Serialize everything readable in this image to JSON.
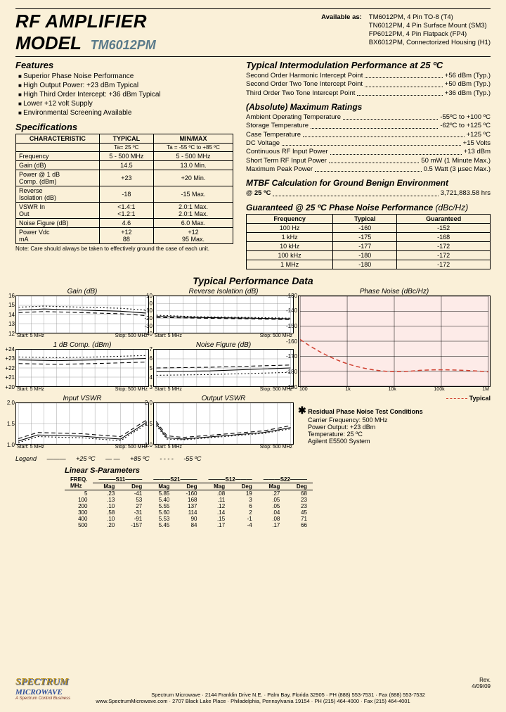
{
  "header": {
    "line1": "RF AMPLIFIER",
    "line2": "MODEL",
    "model": "TM6012PM",
    "available_label": "Available as:",
    "available": [
      "TM6012PM, 4 Pin TO-8 (T4)",
      "TN6012PM, 4 Pin Surface Mount (SM3)",
      "FP6012PM, 4 Pin Flatpack (FP4)",
      "BX6012PM, Connectorized Housing (H1)"
    ]
  },
  "features": {
    "title": "Features",
    "items": [
      "Superior Phase Noise Performance",
      "High Output Power: +23 dBm Typical",
      "High Third Order Intercept: +36 dBm Typical",
      "Lower +12 volt Supply",
      "Environmental Screening Available"
    ]
  },
  "spec": {
    "title": "Specifications",
    "h_char": "CHARACTERISTIC",
    "h_typ": "TYPICAL",
    "h_mm": "MIN/MAX",
    "sub_typ": "Ta= 25 ºC",
    "sub_mm": "Ta = -55 ºC to +85 ºC",
    "rows": [
      {
        "c": "Frequency",
        "t": "5 - 500 MHz",
        "m": "5 - 500 MHz"
      },
      {
        "c": "Gain (dB)",
        "t": "14.5",
        "m": "13.0  Min."
      },
      {
        "c": "Power @ 1 dB\n   Comp. (dBm)",
        "t": "+23",
        "m": "+20  Min."
      },
      {
        "c": "Reverse\n   Isolation (dB)",
        "t": "-18",
        "m": "-15  Max."
      },
      {
        "c": "VSWR      In\n             Out",
        "t": "<1.4:1\n<1.2:1",
        "m": "2.0:1  Max.\n2.0:1  Max."
      },
      {
        "c": "Noise Figure (dB)",
        "t": "4.6",
        "m": "6.0  Max."
      },
      {
        "c": "Power    Vdc\n            mA",
        "t": "+12\n88",
        "m": "+12\n95  Max."
      }
    ],
    "note": "Note: Care should always be taken to effectively ground the case of each unit."
  },
  "intermod": {
    "title": "Typical Intermodulation Performance at 25 ºC",
    "lines": [
      {
        "l": "Second Order Harmonic Intercept Point",
        "r": "+56 dBm (Typ.)"
      },
      {
        "l": "Second Order Two Tone Intercept Point",
        "r": "+50 dBm (Typ.)"
      },
      {
        "l": "Third Order Two Tone Intercept Point",
        "r": "+36 dBm (Typ.)"
      }
    ]
  },
  "maxr": {
    "title": "(Absolute) Maximum Ratings",
    "lines": [
      {
        "l": "Ambient Operating Temperature",
        "r": "-55ºC to +100 ºC"
      },
      {
        "l": "Storage Temperature",
        "r": "-62ºC to +125 ºC"
      },
      {
        "l": "Case Temperature",
        "r": "+125 ºC"
      },
      {
        "l": "DC Voltage",
        "r": "+15 Volts"
      },
      {
        "l": "Continuous RF Input Power",
        "r": "+13 dBm"
      },
      {
        "l": "Short Term RF Input Power",
        "r": "50 mW (1 Minute Max.)"
      },
      {
        "l": "Maximum Peak Power",
        "r": "0.5 Watt (3 µsec Max.)"
      }
    ]
  },
  "mtbf": {
    "title": "MTBF Calculation for Ground Benign Environment",
    "line": {
      "l": "@ 25 ºC",
      "r": "3,721,883.58 hrs"
    }
  },
  "pn_table": {
    "title": "Guaranteed @ 25 ºC Phase Noise Performance ",
    "unit": "(dBc/Hz)",
    "h1": "Frequency",
    "h2": "Typical",
    "h3": "Guaranteed",
    "rows": [
      {
        "f": "100 Hz",
        "t": "-160",
        "g": "-152"
      },
      {
        "f": "1 kHz",
        "t": "-175",
        "g": "-168"
      },
      {
        "f": "10 kHz",
        "t": "-177",
        "g": "-172"
      },
      {
        "f": "100 kHz",
        "t": "-180",
        "g": "-172"
      },
      {
        "f": "1 MHz",
        "t": "-180",
        "g": "-172"
      }
    ]
  },
  "perf": {
    "title": "Typical Performance Data",
    "charts": {
      "gain": {
        "title": "Gain (dB)",
        "ymin": 12,
        "ymax": 16,
        "ystep": 1
      },
      "riso": {
        "title": "Reverse Isolation (dB)",
        "ymin": -40,
        "ymax": 10,
        "ystep": 10
      },
      "pn": {
        "title": "Phase Noise (dBc/Hz)",
        "ymin": -190,
        "ymax": -130,
        "ystep": 10
      },
      "comp": {
        "title": "1 dB Comp. (dBm)",
        "ymin": 20,
        "ymax": 24,
        "ystep": 1
      },
      "nf": {
        "title": "Noise Figure (dB)",
        "ymin": 3,
        "ymax": 7,
        "ystep": 1
      },
      "ivswr": {
        "title": "Input VSWR",
        "ymin": 1.0,
        "ymax": 2.0,
        "ystep": 0.5
      },
      "ovswr": {
        "title": "Output VSWR",
        "ymin": 1.0,
        "ymax": 2.0,
        "ystep": 0.5
      }
    },
    "xstart": "Start: 5 MHz",
    "xstop": "Stop: 500 MHz",
    "legend_label": "Legend",
    "leg25": "+25 ºC",
    "leg85": "+85 ºC",
    "legm55": "-55 ºC",
    "pn_legend": "Typical",
    "cond_title": "Residual Phase Noise Test Conditions",
    "cond": [
      "Carrier Frequency: 500 MHz",
      "Power Output: +23 dBm",
      "Temperature: 25 ºC",
      "Agilent E5500 System"
    ]
  },
  "sparam": {
    "title": "Linear S-Parameters",
    "groups": [
      "S11",
      "S21",
      "S12",
      "S22"
    ],
    "sub": [
      "Mag",
      "Deg"
    ],
    "freq_h": "FREQ.\nMHz",
    "rows": [
      {
        "f": "5",
        "v": [
          ".23",
          "-41",
          "5.85",
          "-160",
          ".08",
          "19",
          ".27",
          "68"
        ]
      },
      {
        "f": "100",
        "v": [
          ".13",
          "53",
          "5.40",
          "168",
          ".11",
          "3",
          ".05",
          "23"
        ]
      },
      {
        "f": "200",
        "v": [
          ".10",
          "27",
          "5.55",
          "137",
          ".12",
          "6",
          ".05",
          "23"
        ]
      },
      {
        "f": "300",
        "v": [
          ".58",
          "-31",
          "5.60",
          "114",
          ".14",
          "2",
          ".04",
          "45"
        ]
      },
      {
        "f": "400",
        "v": [
          ".10",
          "-91",
          "5.53",
          "90",
          ".15",
          "-1",
          ".08",
          "71"
        ]
      },
      {
        "f": "500",
        "v": [
          ".20",
          "-157",
          "5.45",
          "84",
          ".17",
          "-4",
          ".17",
          "66"
        ]
      }
    ]
  },
  "footer": {
    "logo1": "SPECTRUM",
    "logo2": "MICROWAVE",
    "logo_tag": "A Spectrum Control Business",
    "line1": "Spectrum Microwave · 2144 Franklin Drive N.E. · Palm Bay, Florida 32905 · PH (888) 553-7531 · Fax (888) 553-7532",
    "line2": "www.SpectrumMicrowave.com · 2707 Black Lake Place · Philadelphia, Pennsylvania 19154 · PH (215) 464-4000 · Fax (215) 464-4001",
    "rev": "Rev.\n4/09/09"
  },
  "colors": {
    "bg": "#faf0d8",
    "pn_bg": "#fdebe8",
    "pn_line": "#d04030",
    "text": "#000"
  }
}
